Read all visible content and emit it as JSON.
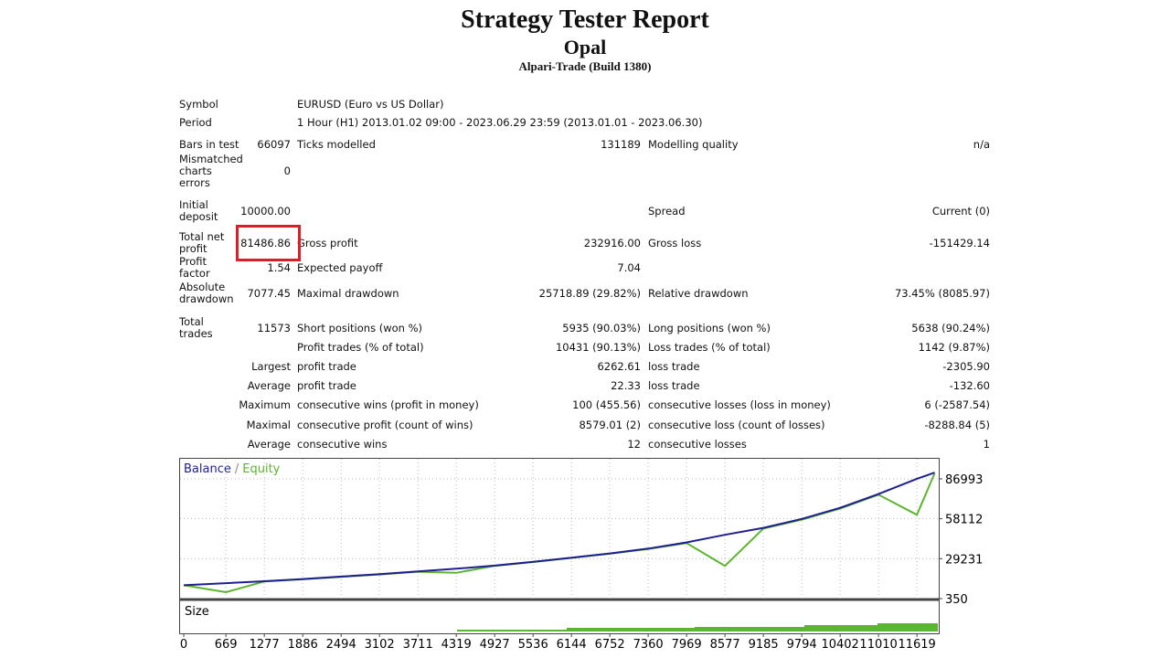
{
  "header": {
    "title": "Strategy Tester Report",
    "subtitle": "Opal",
    "build": "Alpari-Trade (Build 1380)"
  },
  "info": [
    [
      "Symbol",
      "EURUSD (Euro vs US Dollar)"
    ],
    [
      "Period",
      "1 Hour (H1) 2013.01.02 09:00 - 2023.06.29 23:59 (2013.01.01 - 2023.06.30)"
    ]
  ],
  "rows": [
    [
      "Bars in test",
      "66097",
      "Ticks modelled",
      "131189",
      "Modelling quality",
      "n/a"
    ],
    [
      "Mismatched charts errors",
      "0",
      null,
      null,
      null,
      null
    ],
    [
      "Initial deposit",
      "10000.00",
      null,
      null,
      "Spread",
      "Current (0)"
    ],
    [
      "Total net profit",
      "81486.86",
      "Gross profit",
      "232916.00",
      "Gross loss",
      "-151429.14"
    ],
    [
      "Profit factor",
      "1.54",
      "Expected payoff",
      "7.04",
      null,
      null
    ],
    [
      "Absolute drawdown",
      "7077.45",
      "Maximal drawdown",
      "25718.89 (29.82%)",
      "Relative drawdown",
      "73.45% (8085.97)"
    ],
    [
      "Total trades",
      "11573",
      "Short positions (won %)",
      "5935 (90.03%)",
      "Long positions (won %)",
      "5638 (90.24%)"
    ],
    [
      null,
      null,
      "Profit trades (% of total)",
      "10431 (90.13%)",
      "Loss trades (% of total)",
      "1142 (9.87%)"
    ],
    [
      null,
      "Largest",
      "profit trade",
      "6262.61",
      "loss trade",
      "-2305.90"
    ],
    [
      null,
      "Average",
      "profit trade",
      "22.33",
      "loss trade",
      "-132.60"
    ],
    [
      null,
      "Maximum",
      "consecutive wins (profit in money)",
      "100 (455.56)",
      "consecutive losses (loss in money)",
      "6 (-2587.54)"
    ],
    [
      null,
      "Maximal",
      "consecutive profit (count of wins)",
      "8579.01 (2)",
      "consecutive loss (count of losses)",
      "-8288.84 (5)"
    ],
    [
      null,
      "Average",
      "consecutive wins",
      "12",
      "consecutive losses",
      "1"
    ]
  ],
  "chart_data": {
    "type": "line",
    "legend_separator": "/",
    "size_label": "Size",
    "x": [
      0,
      669,
      1277,
      1886,
      2494,
      3102,
      3711,
      4319,
      4927,
      5536,
      6144,
      6752,
      7360,
      7969,
      8577,
      9185,
      9794,
      10402,
      11010,
      11619,
      11900
    ],
    "xlim": [
      0,
      11950
    ],
    "xticks": [
      0,
      669,
      1277,
      1886,
      2494,
      3102,
      3711,
      4319,
      4927,
      5536,
      6144,
      6752,
      7360,
      7969,
      8577,
      9185,
      9794,
      10402,
      11010,
      11619
    ],
    "ylim": [
      350,
      101500
    ],
    "yticks": [
      350,
      29231,
      58112,
      86993
    ],
    "grid": true,
    "series": [
      {
        "name": "Balance",
        "color": "#1f1f8f",
        "values": [
          10000,
          11500,
          12900,
          14500,
          16300,
          18000,
          20000,
          22000,
          24200,
          27000,
          30000,
          33000,
          36500,
          41000,
          46500,
          51500,
          58000,
          66000,
          76000,
          87000,
          91486
        ]
      },
      {
        "name": "Equity",
        "color": "#5cb531",
        "values": [
          10000,
          5000,
          12700,
          14300,
          16000,
          17800,
          19800,
          19000,
          24000,
          26800,
          29800,
          32800,
          36200,
          40500,
          24000,
          51000,
          57500,
          65500,
          75500,
          61000,
          91000
        ]
      }
    ]
  }
}
